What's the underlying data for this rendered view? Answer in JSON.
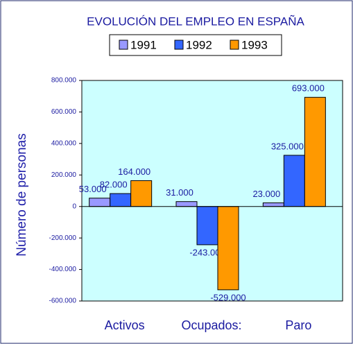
{
  "chart_data": {
    "type": "bar",
    "title": "EVOLUCIÓN DEL EMPLEO EN ESPAÑA",
    "y_label": "Número de personas",
    "categories": [
      "Activos",
      "Ocupados:",
      "Paro"
    ],
    "series": [
      {
        "name": "1991",
        "color": "#9999ff",
        "values": [
          53000,
          31000,
          23000
        ],
        "value_labels": [
          "53.000",
          "31.000",
          "23.000"
        ]
      },
      {
        "name": "1992",
        "color": "#3366ff",
        "values": [
          82000,
          -243000,
          325000
        ],
        "value_labels": [
          "82.000",
          "-243.000",
          "325.000"
        ]
      },
      {
        "name": "1993",
        "color": "#ff9900",
        "values": [
          164000,
          -529000,
          693000
        ],
        "value_labels": [
          "164.000",
          "-529.000",
          "693.000"
        ]
      }
    ],
    "ylim": [
      -600000,
      800000
    ],
    "yticks": [
      {
        "value": -600000,
        "label": "-600.000"
      },
      {
        "value": -400000,
        "label": "-400.000"
      },
      {
        "value": -200000,
        "label": "-200.000"
      },
      0,
      {
        "value": 200000,
        "label": "200.000"
      },
      {
        "value": 400000,
        "label": "400.000"
      },
      {
        "value": 600000,
        "label": "600.000"
      },
      {
        "value": 800000,
        "label": "800.000"
      }
    ],
    "background": "#ccffff"
  }
}
